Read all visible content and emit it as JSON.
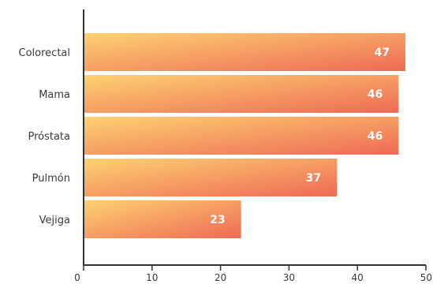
{
  "chart_data": {
    "type": "bar",
    "orientation": "horizontal",
    "categories": [
      "Colorectal",
      "Mama",
      "Próstata",
      "Pulmón",
      "Vejiga"
    ],
    "values": [
      47,
      46,
      46,
      37,
      23
    ],
    "xlim": [
      0,
      50
    ],
    "xticks": [
      0,
      10,
      20,
      30,
      40,
      50
    ],
    "grid": false,
    "data_labels": true,
    "colors": {
      "bar_gradient_start": "#fdd271",
      "bar_gradient_end": "#ee6a55",
      "axis": "#333333",
      "text": "#3a3a3a",
      "value_text": "#ffffff"
    }
  }
}
